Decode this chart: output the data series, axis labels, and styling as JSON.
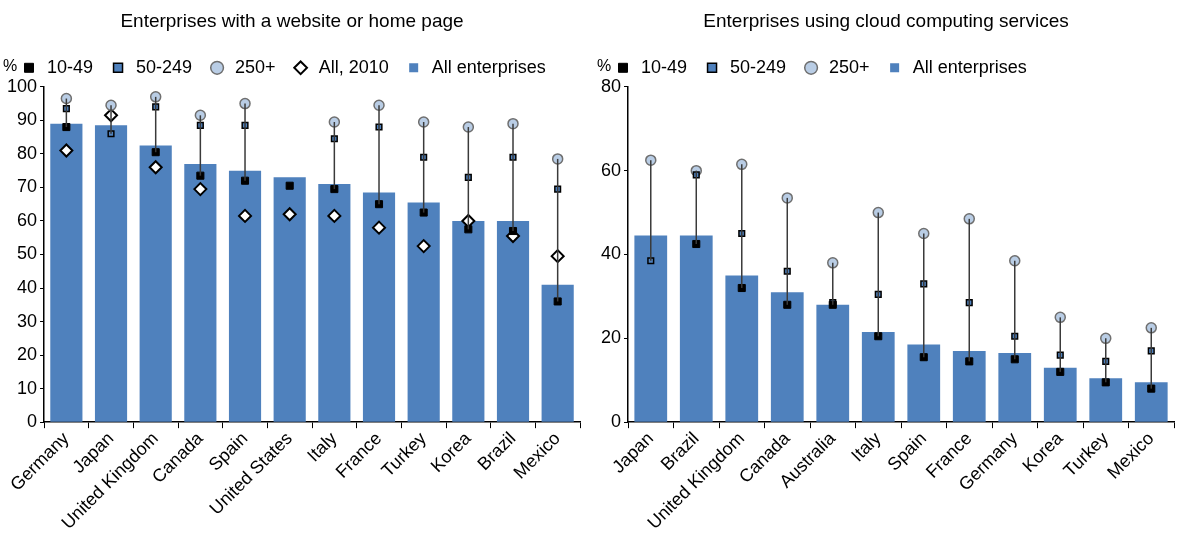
{
  "chart_data": [
    {
      "type": "bar",
      "title": "Enterprises with a website or home page",
      "ylabel": "%",
      "categories": [
        "Germany",
        "Japan",
        "United Kingdom",
        "Canada",
        "Spain",
        "United States",
        "Italy",
        "France",
        "Turkey",
        "Korea",
        "Brazil",
        "Mexico"
      ],
      "ylim": [
        0,
        100
      ],
      "yticks": [
        0,
        10,
        20,
        30,
        40,
        50,
        60,
        70,
        80,
        90,
        100
      ],
      "grid": false,
      "legend": "top left",
      "series": [
        {
          "name": "All enterprises",
          "color": "#4f81bd",
          "values": [
            89,
            88.5,
            82.5,
            77,
            75,
            73,
            71,
            68.5,
            65.5,
            60,
            60,
            41
          ]
        },
        {
          "type": "scatter",
          "name": "10-49",
          "color": "#000000",
          "marker": "square",
          "x": [
            "Germany",
            "Japan",
            "United Kingdom",
            "Canada",
            "Spain",
            "United States",
            "Italy",
            "France",
            "Turkey",
            "Korea",
            "Brazil",
            "Mexico"
          ],
          "values": [
            88,
            null,
            80.5,
            73.5,
            72,
            70.5,
            69.5,
            65,
            62.5,
            57.5,
            57,
            36
          ]
        },
        {
          "type": "scatter",
          "name": "50-249",
          "color": "#4f81bd",
          "marker": "square",
          "x": [
            "Germany",
            "Japan",
            "United Kingdom",
            "Canada",
            "Spain",
            "United States",
            "Italy",
            "France",
            "Turkey",
            "Korea",
            "Brazil",
            "Mexico"
          ],
          "values": [
            93.5,
            86,
            94,
            88.5,
            88.5,
            null,
            84.5,
            88,
            79,
            73,
            79,
            69.5
          ]
        },
        {
          "type": "scatter",
          "name": "250+",
          "color": "#b9cde5",
          "marker": "circle",
          "x": [
            "Germany",
            "Japan",
            "United Kingdom",
            "Canada",
            "Spain",
            "United States",
            "Italy",
            "France",
            "Turkey",
            "Korea",
            "Brazil",
            "Mexico"
          ],
          "values": [
            96.5,
            94.5,
            97,
            91.5,
            95,
            null,
            89.5,
            94.5,
            89.5,
            88,
            89,
            78.5
          ]
        },
        {
          "type": "scatter",
          "name": "All, 2010",
          "color": "#ffffff",
          "marker": "diamond",
          "x": [
            "Germany",
            "Japan",
            "United Kingdom",
            "Canada",
            "Spain",
            "United States",
            "Italy",
            "France",
            "Turkey",
            "Korea",
            "Brazil",
            "Mexico"
          ],
          "values": [
            81,
            91.5,
            76,
            69.5,
            61.5,
            62,
            61.5,
            58,
            52.5,
            60,
            55.5,
            49.5
          ]
        }
      ]
    },
    {
      "type": "bar",
      "title": "Enterprises using cloud computing services",
      "ylabel": "%",
      "categories": [
        "Japan",
        "Brazil",
        "United Kingdom",
        "Canada",
        "Australia",
        "Italy",
        "Spain",
        "France",
        "Germany",
        "Korea",
        "Turkey",
        "Mexico"
      ],
      "ylim": [
        0,
        80
      ],
      "yticks": [
        0,
        20,
        40,
        60,
        80
      ],
      "grid": false,
      "legend": "top left",
      "series": [
        {
          "name": "All enterprises",
          "color": "#4f81bd",
          "values": [
            44.5,
            44.5,
            35,
            31,
            28,
            21.5,
            18.5,
            17,
            16.5,
            13,
            10.5,
            9.5
          ]
        },
        {
          "type": "scatter",
          "name": "10-49",
          "color": "#000000",
          "marker": "square",
          "x": [
            "Japan",
            "Brazil",
            "United Kingdom",
            "Canada",
            "Australia",
            "Italy",
            "Spain",
            "France",
            "Germany",
            "Korea",
            "Turkey",
            "Mexico"
          ],
          "values": [
            null,
            42.5,
            32,
            28,
            28,
            20.5,
            15.5,
            14.5,
            15,
            12,
            9.5,
            8
          ]
        },
        {
          "type": "scatter",
          "name": "50-249",
          "color": "#4f81bd",
          "marker": "square",
          "x": [
            "Japan",
            "Brazil",
            "United Kingdom",
            "Canada",
            "Australia",
            "Italy",
            "Spain",
            "France",
            "Germany",
            "Korea",
            "Turkey",
            "Mexico"
          ],
          "values": [
            38.5,
            59,
            45,
            36,
            28.5,
            30.5,
            33,
            28.5,
            20.5,
            16,
            14.5,
            17
          ]
        },
        {
          "type": "scatter",
          "name": "250+",
          "color": "#b9cde5",
          "marker": "circle",
          "x": [
            "Japan",
            "Brazil",
            "United Kingdom",
            "Canada",
            "Australia",
            "Italy",
            "Spain",
            "France",
            "Germany",
            "Korea",
            "Turkey",
            "Mexico"
          ],
          "values": [
            62.5,
            60,
            61.5,
            53.5,
            38,
            50,
            45,
            48.5,
            38.5,
            25,
            20,
            22.5
          ]
        }
      ]
    }
  ]
}
